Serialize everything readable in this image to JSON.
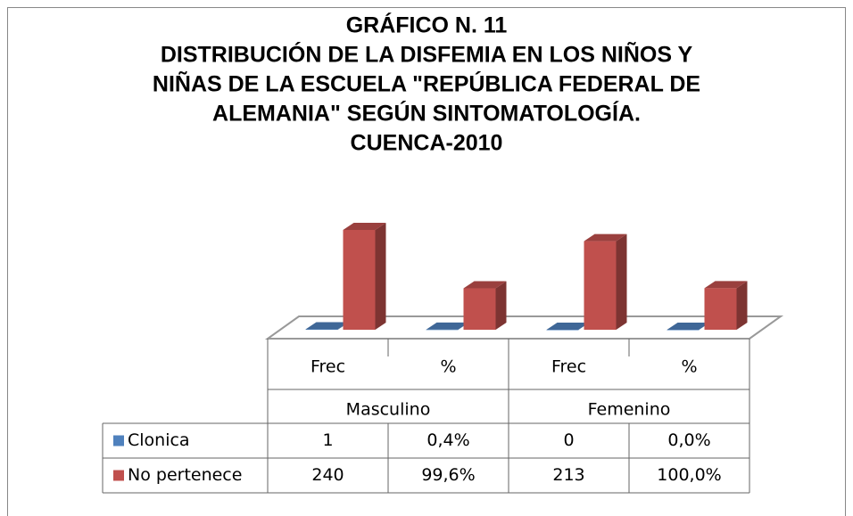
{
  "chart_data": {
    "type": "bar3d",
    "title": [
      "GRÁFICO N. 11",
      "DISTRIBUCIÓN DE LA DISFEMIA EN LOS NIÑOS Y",
      "NIÑAS DE LA ESCUELA \"REPÚBLICA FEDERAL DE",
      "ALEMANIA\" SEGÚN SINTOMATOLOGÍA.",
      "CUENCA-2010"
    ],
    "categories": [
      "Frec",
      "%",
      "Frec",
      "%"
    ],
    "groups": [
      "Masculino",
      "Femenino"
    ],
    "series": [
      {
        "name": "Clonica",
        "color": "#4f81bd",
        "values": [
          1,
          0.4,
          0,
          0.0
        ],
        "value_labels": [
          "1",
          "0,4%",
          "0",
          "0,0%"
        ]
      },
      {
        "name": "No pertenece",
        "color": "#c0504d",
        "values": [
          240,
          99.6,
          213,
          100.0
        ],
        "value_labels": [
          "240",
          "99,6%",
          "213",
          "100,0%"
        ]
      }
    ]
  }
}
